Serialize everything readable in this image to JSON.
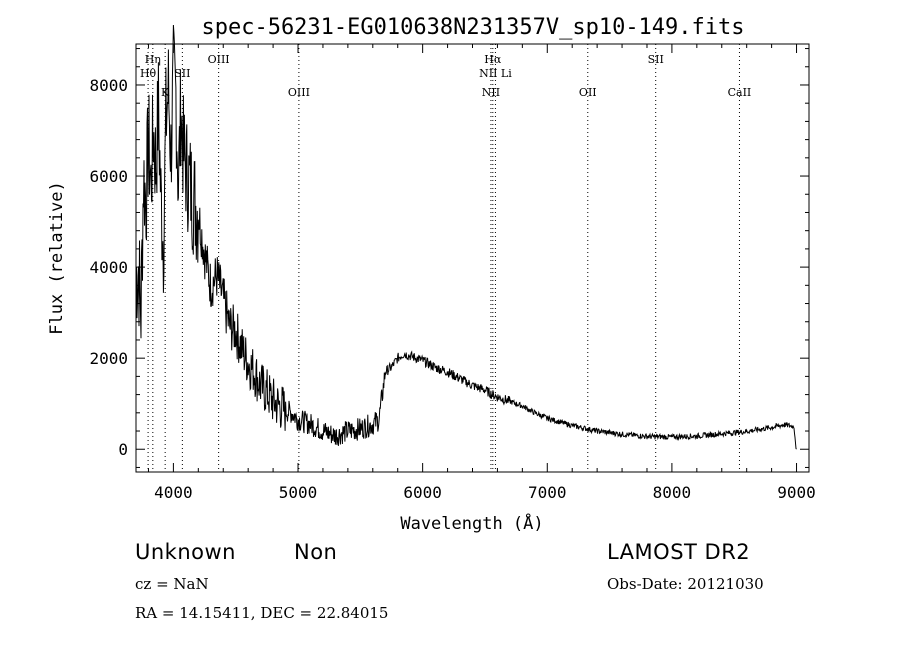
{
  "chart_data": {
    "type": "line",
    "title": "spec-56231-EG010638N231357V_sp10-149.fits",
    "xlabel": "Wavelength (Å)",
    "ylabel": "Flux (relative)",
    "xlim": [
      3700,
      9100
    ],
    "ylim": [
      -500,
      8900
    ],
    "xticks": [
      4000,
      5000,
      6000,
      7000,
      8000,
      9000
    ],
    "yticks": [
      0,
      2000,
      4000,
      6000,
      8000
    ],
    "grid": false,
    "series": [
      {
        "x": [
          3700,
          3720,
          3740,
          3760,
          3780,
          3800,
          3820,
          3840,
          3860,
          3880,
          3900,
          3920,
          3940,
          3960,
          3980,
          4000,
          4020,
          4040,
          4060,
          4080,
          4100,
          4150,
          4200,
          4250,
          4300,
          4350,
          4400,
          4450,
          4500,
          4550,
          4600,
          4650,
          4700,
          4750,
          4800,
          4850,
          4900,
          4950,
          5000,
          5100,
          5200,
          5300,
          5400,
          5500,
          5600,
          5650,
          5700,
          5750,
          5800,
          5850,
          5900,
          6000,
          6100,
          6200,
          6300,
          6400,
          6500,
          6560,
          6600,
          6700,
          6800,
          6900,
          7000,
          7200,
          7400,
          7600,
          7800,
          8000,
          8200,
          8400,
          8600,
          8800,
          8900,
          8980,
          9000
        ],
        "y": [
          3800,
          4000,
          3000,
          6000,
          5500,
          6800,
          5800,
          7000,
          6200,
          7500,
          5500,
          4500,
          7200,
          7900,
          6500,
          8100,
          7800,
          5800,
          7500,
          6500,
          6200,
          5600,
          5200,
          4300,
          3600,
          3800,
          3300,
          2700,
          2600,
          2200,
          1900,
          1700,
          1400,
          1250,
          1050,
          950,
          850,
          800,
          650,
          550,
          400,
          300,
          400,
          450,
          550,
          650,
          1700,
          1800,
          2000,
          2100,
          2050,
          1950,
          1800,
          1700,
          1550,
          1400,
          1300,
          1200,
          1150,
          1050,
          950,
          800,
          680,
          520,
          400,
          330,
          280,
          270,
          290,
          340,
          390,
          480,
          540,
          500,
          -50
        ]
      }
    ],
    "lines": [
      {
        "label": "Hη",
        "x": 3835,
        "row": 1
      },
      {
        "label": "Hθ",
        "x": 3797,
        "row": 2
      },
      {
        "label": "K",
        "x": 3934,
        "row": 3
      },
      {
        "label": "SII",
        "x": 4072,
        "row": 2
      },
      {
        "label": "OIII",
        "x": 4363,
        "row": 1
      },
      {
        "label": "OIII",
        "x": 5007,
        "row": 3
      },
      {
        "label": "Hα",
        "x": 6563,
        "row": 1
      },
      {
        "label": "NII Li",
        "x": 6584,
        "row": 2
      },
      {
        "label": "NII",
        "x": 6548,
        "row": 3
      },
      {
        "label": "OII",
        "x": 7325,
        "row": 3
      },
      {
        "label": "SII",
        "x": 7870,
        "row": 1
      },
      {
        "label": "CaII",
        "x": 8542,
        "row": 3
      }
    ]
  },
  "info": {
    "class": "Unknown",
    "subclass": "Non",
    "survey": "LAMOST DR2",
    "cz": "cz = NaN",
    "obs_date": "Obs-Date: 20121030",
    "coords": "RA =  14.15411, DEC =  22.84015"
  }
}
